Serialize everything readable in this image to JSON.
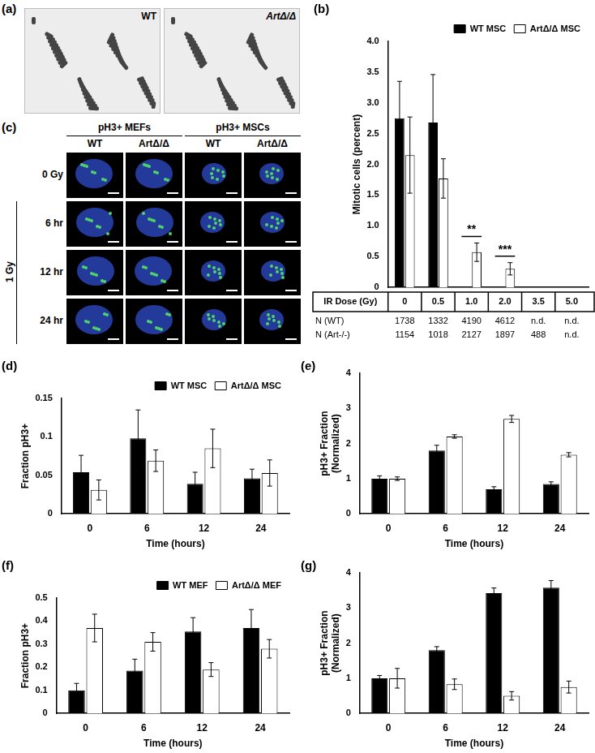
{
  "panels": [
    {
      "panel": "(a)",
      "type": "image",
      "labels": [
        "WT",
        "ArtΔ/Δ"
      ]
    },
    {
      "panel": "(c)",
      "type": "image_grid",
      "groups": [
        "pH3+ MEFs",
        "pH3+ MSCs"
      ],
      "columns": [
        "WT",
        "ArtΔ/Δ",
        "WT",
        "ArtΔ/Δ"
      ],
      "rows": [
        "0 Gy",
        "6 hr",
        "12 hr",
        "24 hr"
      ],
      "row_group": "1 Gy"
    }
  ],
  "chart_data": [
    {
      "panel": "(b)",
      "type": "bar",
      "y_label": "Mitotic cells (percent)",
      "categories": [
        "0",
        "0.5",
        "1.0",
        "2.0",
        "3.5",
        "5.0"
      ],
      "series": [
        {
          "name": "WT MSC",
          "color": "#000000",
          "values": [
            2.75,
            2.68,
            0,
            0,
            null,
            null
          ],
          "errors": [
            0.6,
            0.78,
            null,
            null,
            null,
            null
          ]
        },
        {
          "name": "ArtΔ/Δ MSC",
          "color": "#ffffff",
          "values": [
            2.15,
            1.77,
            0.57,
            0.3,
            0,
            null
          ],
          "errors": [
            0.62,
            0.32,
            0.15,
            0.1,
            null,
            null
          ]
        }
      ],
      "ylim": [
        0,
        4
      ],
      "yticks": [
        0,
        0.5,
        {
          "value": 1,
          "label": "1.0"
        },
        1.5,
        {
          "value": 2,
          "label": "2.0"
        },
        2.5,
        {
          "value": 3,
          "label": "3.0"
        },
        3.5,
        {
          "value": 4,
          "label": "4.0"
        }
      ],
      "annotations": [
        {
          "text": "**",
          "category": "1.0"
        },
        {
          "text": "***",
          "category": "2.0"
        }
      ],
      "table": {
        "header": "IR Dose (Gy)",
        "rows": [
          {
            "label": "N (WT)",
            "values": [
              1738,
              1332,
              4190,
              4612,
              "n.d.",
              "n.d."
            ]
          },
          {
            "label": "N (Art-/-)",
            "values": [
              1154,
              1018,
              2127,
              1897,
              488,
              "n.d."
            ]
          }
        ]
      },
      "legend": "top-right",
      "grid": false,
      "tick_labels": "y"
    },
    {
      "panel": "(d)",
      "type": "bar",
      "y_label": "Fraction pH3+",
      "x_label": "Time (hours)",
      "categories": [
        "0",
        "6",
        "12",
        "24"
      ],
      "series": [
        {
          "name": "WT MSC",
          "color": "#000000",
          "values": [
            0.054,
            0.098,
            0.039,
            0.046
          ],
          "errors": [
            0.022,
            0.037,
            0.015,
            0.012
          ]
        },
        {
          "name": "ArtΔ/Δ MSC",
          "color": "#ffffff",
          "values": [
            0.031,
            0.069,
            0.085,
            0.053
          ],
          "errors": [
            0.013,
            0.014,
            0.025,
            0.017
          ]
        }
      ],
      "ylim": [
        0,
        0.15
      ],
      "yticks": [
        0,
        0.05,
        0.1,
        0.15
      ],
      "legend": "top-right",
      "grid": false
    },
    {
      "panel": "(e)",
      "type": "bar",
      "y_label": [
        "pH3+ Fraction",
        "(Normalized)"
      ],
      "x_label": "Time (hours)",
      "categories": [
        "0",
        "6",
        "12",
        "24"
      ],
      "series": [
        {
          "name": "WT MSC",
          "color": "#000000",
          "values": [
            1,
            1.8,
            0.7,
            0.85
          ],
          "errors": [
            0.08,
            0.15,
            0.07,
            0.06
          ]
        },
        {
          "name": "ArtΔ/Δ MSC",
          "color": "#ffffff",
          "values": [
            1,
            2.2,
            2.7,
            1.68
          ],
          "errors": [
            0.05,
            0.05,
            0.1,
            0.06
          ]
        }
      ],
      "ylim": [
        0,
        4
      ],
      "yticks": [
        0,
        1,
        2,
        3,
        4
      ],
      "grid": false
    },
    {
      "panel": "(f)",
      "type": "bar",
      "y_label": "Fraction pH3+",
      "x_label": "Time (hours)",
      "categories": [
        "0",
        "6",
        "12",
        "24"
      ],
      "series": [
        {
          "name": "WT MEF",
          "color": "#000000",
          "values": [
            0.1,
            0.185,
            0.355,
            0.37
          ],
          "errors": [
            0.03,
            0.05,
            0.06,
            0.08
          ]
        },
        {
          "name": "ArtΔ/Δ MEF",
          "color": "#ffffff",
          "values": [
            0.37,
            0.31,
            0.19,
            0.28
          ],
          "errors": [
            0.06,
            0.04,
            0.03,
            0.04
          ]
        }
      ],
      "ylim": [
        0,
        0.5
      ],
      "yticks": [
        0,
        0.1,
        0.2,
        0.3,
        0.4,
        0.5
      ],
      "legend": "top-right",
      "grid": false
    },
    {
      "panel": "(g)",
      "type": "bar",
      "y_label": [
        "pH3+ Fraction",
        "(Normalized)"
      ],
      "x_label": "Time (hours)",
      "categories": [
        "0",
        "6",
        "12",
        "24"
      ],
      "series": [
        {
          "name": "WT MEF",
          "color": "#000000",
          "values": [
            1,
            1.8,
            3.42,
            3.58
          ],
          "errors": [
            0.08,
            0.1,
            0.15,
            0.2
          ]
        },
        {
          "name": "ArtΔ/Δ MEF",
          "color": "#ffffff",
          "values": [
            1,
            0.83,
            0.5,
            0.75
          ],
          "errors": [
            0.28,
            0.15,
            0.12,
            0.17
          ]
        }
      ],
      "ylim": [
        0,
        4
      ],
      "yticks": [
        0,
        1,
        2,
        3,
        4
      ],
      "grid": false
    }
  ]
}
